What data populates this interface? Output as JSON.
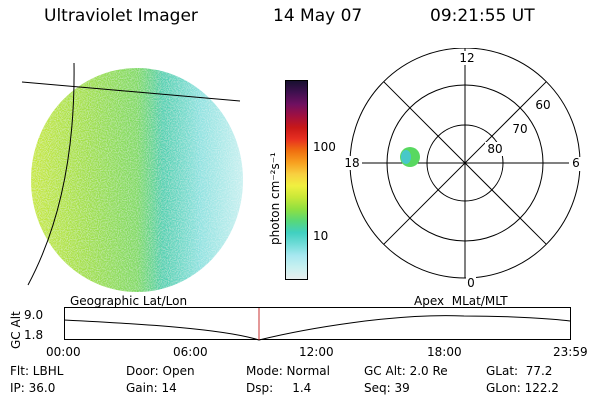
{
  "header": {
    "title": "Ultraviolet Imager",
    "date": "14 May 07",
    "time": "09:21:55 UT"
  },
  "colorbar": {
    "unit_label": "photon cm⁻²s⁻¹",
    "ticks": [
      "100",
      "10"
    ],
    "colors": [
      "#e8eeee",
      "#c8f0f0",
      "#a8e8f0",
      "#70dcd8",
      "#40d0c0",
      "#58d878",
      "#90e040",
      "#c8e838",
      "#f0f040",
      "#f8d040",
      "#f8a020",
      "#f07010",
      "#e83020",
      "#c81818",
      "#a01040",
      "#701060",
      "#401050",
      "#181030"
    ]
  },
  "polar": {
    "mlt_labels": {
      "top": "12",
      "right": "6",
      "bottom": "0",
      "left": "18"
    },
    "lat_labels": [
      "60",
      "70",
      "80"
    ]
  },
  "timeline": {
    "left_label": "Geographic Lat/Lon",
    "right_label": "Apex  MLat/MLT",
    "axis_label": "GC Alt",
    "y_max": "9.0",
    "y_min": "1.8",
    "time_ticks": [
      "00:00",
      "06:00",
      "12:00",
      "18:00",
      "23:59"
    ],
    "marker_color": "#c83030"
  },
  "info": {
    "flt": "Flt: LBHL",
    "ip": "IP: 36.0",
    "door": "Door: Open",
    "gain": "Gain: 14",
    "mode": "Mode: Normal",
    "dsp": "Dsp:     1.4",
    "gc_alt": "GC Alt: 2.0 Re",
    "seq": "Seq: 39",
    "glat": "GLat:  77.2",
    "glon": "GLon: 122.2"
  }
}
